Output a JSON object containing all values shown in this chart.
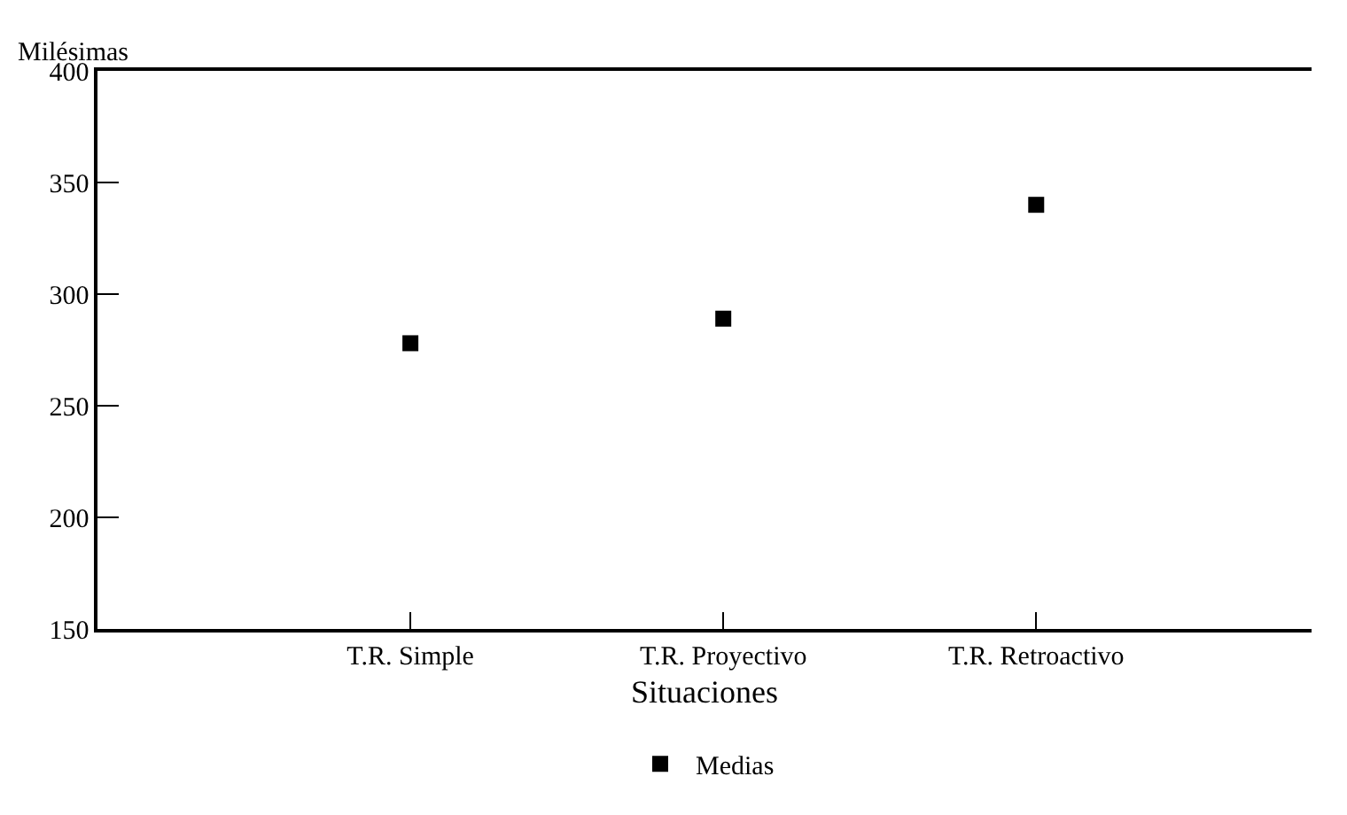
{
  "chart_data": {
    "type": "scatter",
    "ylabel": "Milésimas",
    "xlabel": "Situaciones",
    "categories": [
      "T.R. Simple",
      "T.R. Proyectivo",
      "T.R. Retroactivo"
    ],
    "series": [
      {
        "name": "Medias",
        "color": "#000000",
        "values": [
          278,
          289,
          340
        ]
      }
    ],
    "marker": "square",
    "ylim": [
      150,
      400
    ],
    "yticks": [
      150,
      200,
      250,
      300,
      350,
      400
    ],
    "legend": "bottom"
  }
}
